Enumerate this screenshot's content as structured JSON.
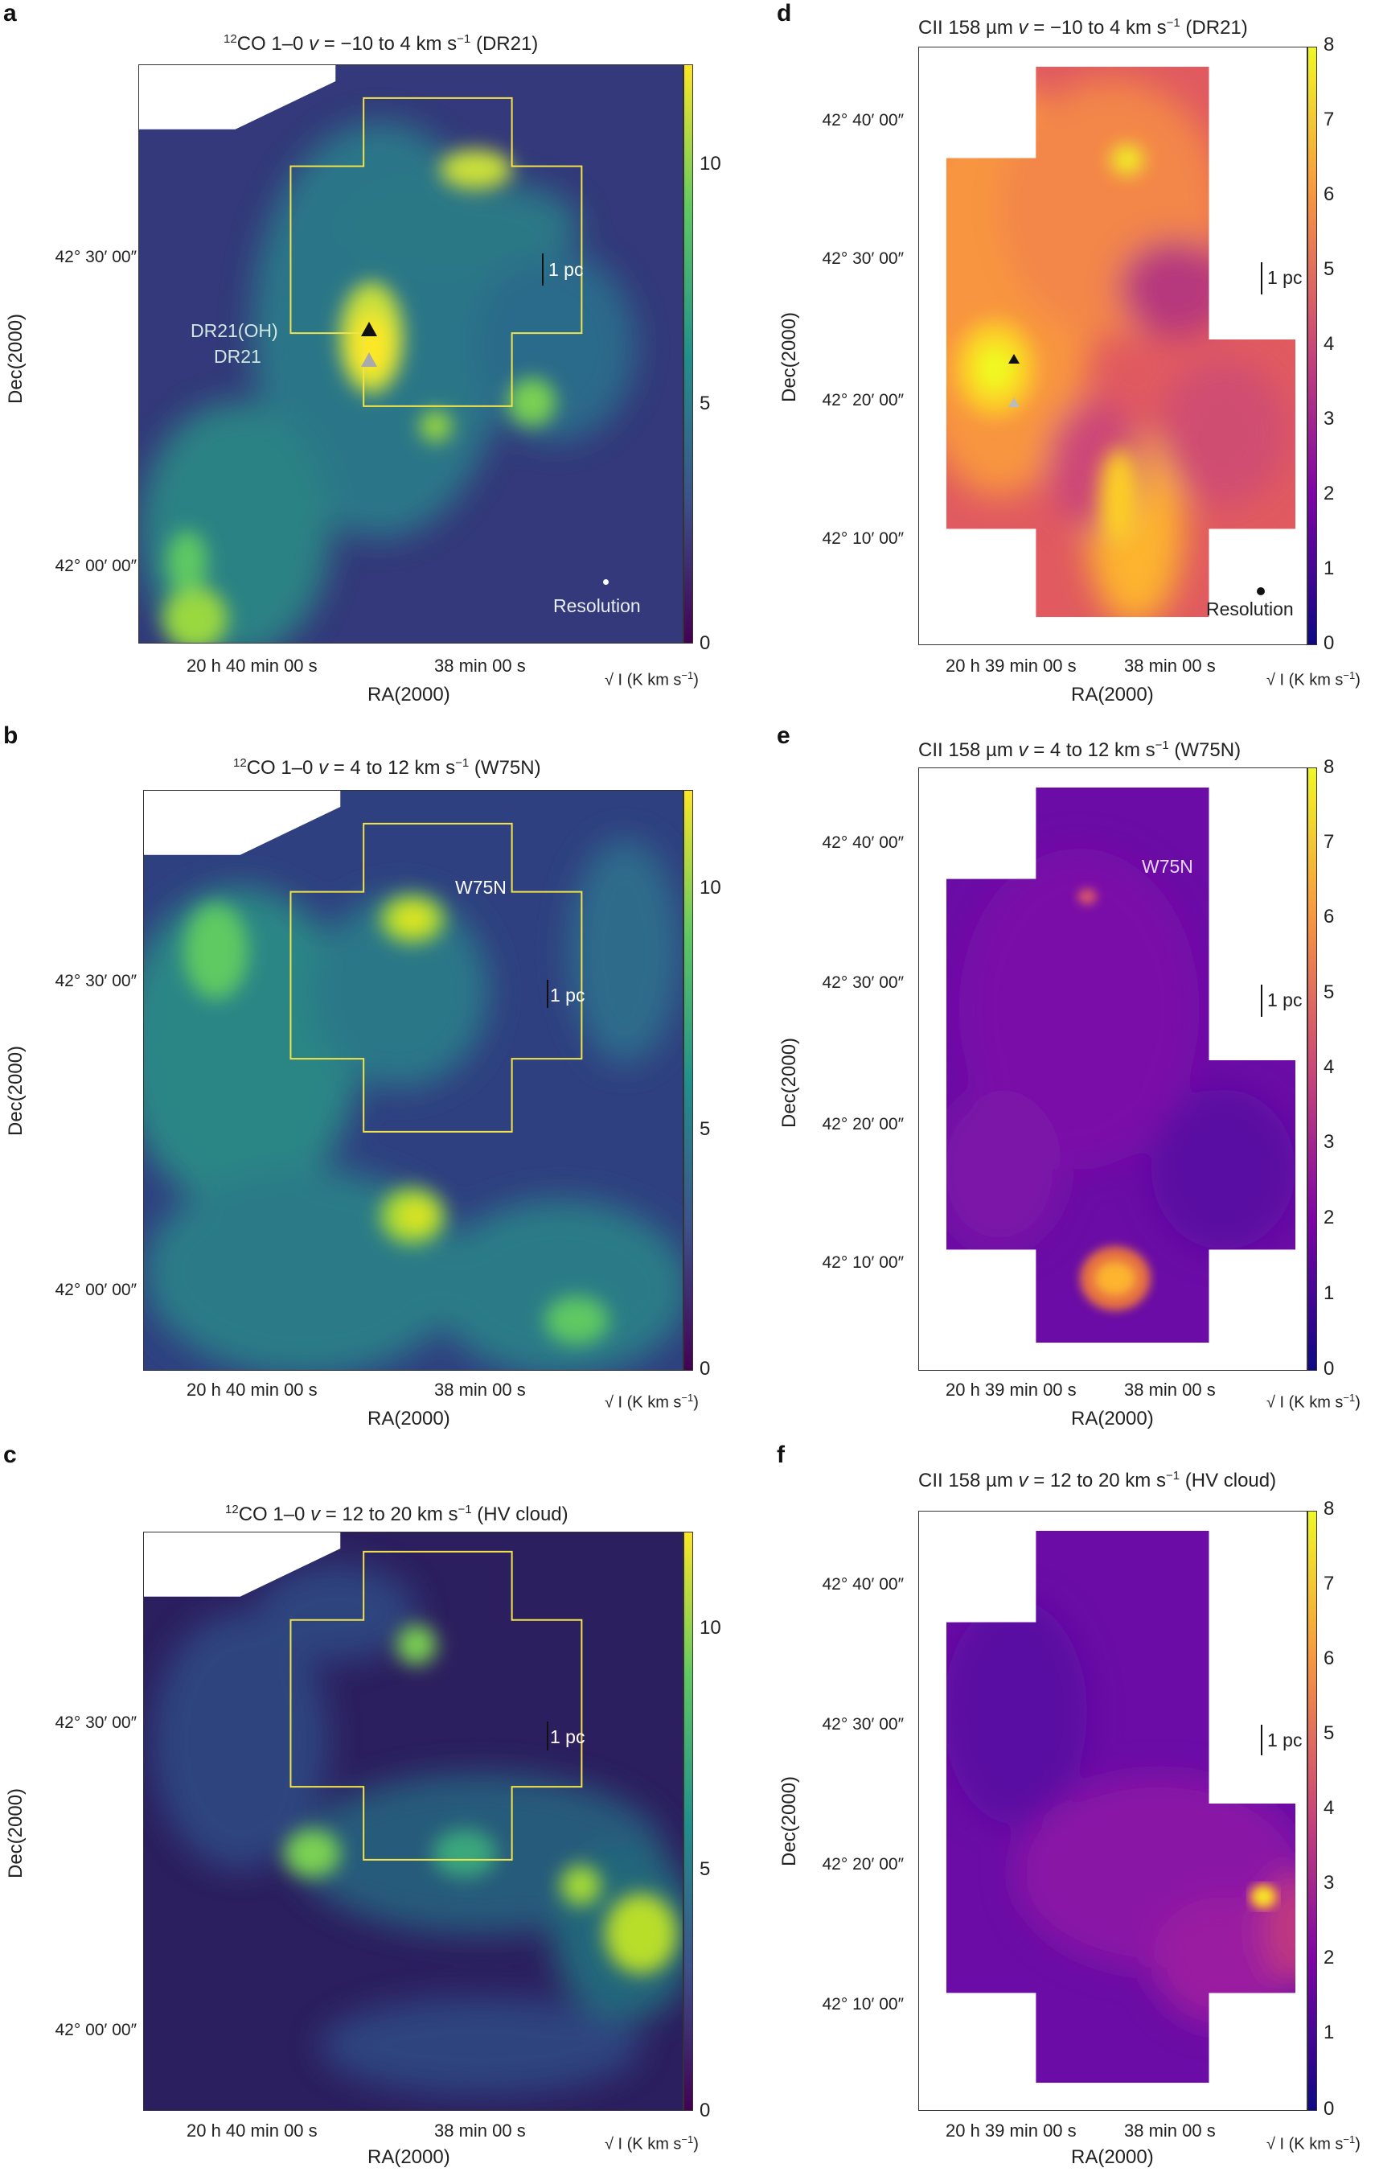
{
  "colors": {
    "co_low": "#2b1f5c",
    "co_high": "#fde725",
    "cii_low": "#120a88",
    "cii_high": "#f0f921",
    "contour": "#f2e34a"
  },
  "common": {
    "xlabel": "RA(2000)",
    "ylabel": "Dec(2000)",
    "cbar_unit_prefix": "√ I (K km s",
    "cbar_unit_sup": "−1",
    "cbar_unit_suffix": ")",
    "scalebar": "1 pc",
    "resolution": "Resolution"
  },
  "panels": {
    "a": {
      "label": "a",
      "title_sup": "12",
      "title_main": "CO 1–0 ",
      "title_v": "v",
      "title_rest": " = −10 to 4 km s",
      "title_sup2": "−1",
      "title_end": " (DR21)",
      "xticks": [
        "20 h 40 min 00 s",
        "38 min 00 s"
      ],
      "yticks": [
        "42° 30′ 00″",
        "42° 00′ 00″"
      ],
      "cbticks": [
        "10",
        "5",
        "0"
      ],
      "annotations": [
        "DR21(OH)",
        "DR21"
      ]
    },
    "b": {
      "label": "b",
      "title_sup": "12",
      "title_main": "CO 1–0 ",
      "title_v": "v",
      "title_rest": " = 4 to 12 km s",
      "title_sup2": "−1",
      "title_end": " (W75N)",
      "xticks": [
        "20 h 40 min 00 s",
        "38 min 00 s"
      ],
      "yticks": [
        "42° 30′ 00″",
        "42° 00′ 00″"
      ],
      "cbticks": [
        "10",
        "5",
        "0"
      ],
      "annotations": [
        "W75N"
      ]
    },
    "c": {
      "label": "c",
      "title_sup": "12",
      "title_main": "CO 1–0 ",
      "title_v": "v",
      "title_rest": " = 12 to 20 km s",
      "title_sup2": "−1",
      "title_end": " (HV cloud)",
      "xticks": [
        "20 h 40 min 00 s",
        "38 min 00 s"
      ],
      "yticks": [
        "42° 30′ 00″",
        "42° 00′ 00″"
      ],
      "cbticks": [
        "10",
        "5",
        "0"
      ]
    },
    "d": {
      "label": "d",
      "title_main": "CII 158 µm ",
      "title_v": "v",
      "title_rest": " = −10 to 4 km s",
      "title_sup2": "−1",
      "title_end": " (DR21)",
      "xticks": [
        "20 h 39 min 00 s",
        "38 min 00 s"
      ],
      "yticks": [
        "42° 40′ 00″",
        "42° 30′ 00″",
        "42° 20′ 00″",
        "42° 10′ 00″"
      ],
      "cbticks": [
        "8",
        "7",
        "6",
        "5",
        "4",
        "3",
        "2",
        "1",
        "0"
      ]
    },
    "e": {
      "label": "e",
      "title_main": "CII 158 µm ",
      "title_v": "v",
      "title_rest": " = 4 to 12 km s",
      "title_sup2": "−1",
      "title_end": " (W75N)",
      "xticks": [
        "20 h 39 min 00 s",
        "38 min 00 s"
      ],
      "yticks": [
        "42° 40′ 00″",
        "42° 30′ 00″",
        "42° 20′ 00″",
        "42° 10′ 00″"
      ],
      "cbticks": [
        "8",
        "7",
        "6",
        "5",
        "4",
        "3",
        "2",
        "1",
        "0"
      ],
      "annotations": [
        "W75N"
      ]
    },
    "f": {
      "label": "f",
      "title_main": "CII 158 µm ",
      "title_v": "v",
      "title_rest": " = 12 to 20 km s",
      "title_sup2": "−1",
      "title_end": " (HV cloud)",
      "xticks": [
        "20 h 39 min 00 s",
        "38 min 00 s"
      ],
      "yticks": [
        "42° 40′ 00″",
        "42° 30′ 00″",
        "42° 20′ 00″",
        "42° 10′ 00″"
      ],
      "cbticks": [
        "8",
        "7",
        "6",
        "5",
        "4",
        "3",
        "2",
        "1",
        "0"
      ]
    }
  }
}
